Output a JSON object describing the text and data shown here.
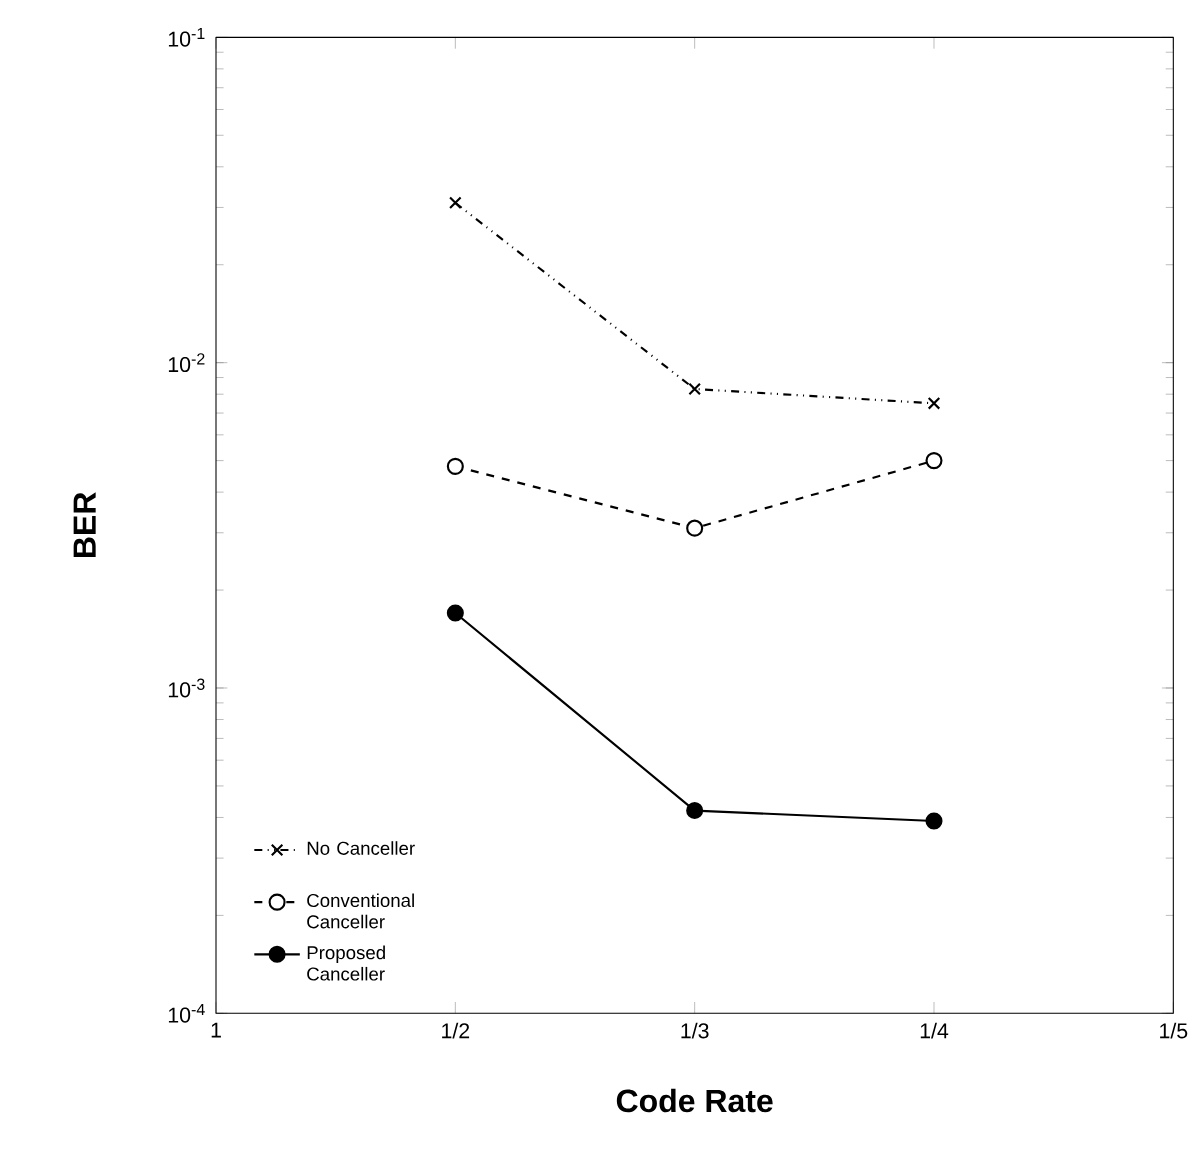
{
  "chart_data": {
    "type": "line",
    "xlabel": "Code Rate",
    "ylabel": "BER",
    "categories": [
      "1",
      "1/2",
      "1/3",
      "1/4",
      "1/5"
    ],
    "series": [
      {
        "name": "No Canceller",
        "color": "#000000",
        "marker": "cross",
        "line_style": "dotted",
        "values": [
          null,
          0.031,
          0.0083,
          0.0075,
          null
        ]
      },
      {
        "name": "Conventional Canceller",
        "color": "#000000",
        "marker": "circle",
        "line_style": "dashed",
        "values": [
          null,
          0.0048,
          0.0031,
          0.005,
          null
        ]
      },
      {
        "name": "Proposed Canceller",
        "color": "#000000",
        "marker": "circle",
        "line_style": "solid",
        "values": [
          null,
          0.0017,
          0.00042,
          0.00039,
          null
        ]
      }
    ],
    "log": "y",
    "ylim": [
      0.0001,
      0.1
    ],
    "yticks": [
      {
        "value": 0.0001,
        "label": "10$^{-4}$"
      },
      {
        "value": 0.001,
        "label": "10$^{-3}$"
      },
      {
        "value": 0.01,
        "label": "10$^{-2}$"
      },
      {
        "value": 0.1,
        "label": "10$^{-1}$"
      }
    ],
    "grid": false,
    "legend": "bottom left"
  }
}
